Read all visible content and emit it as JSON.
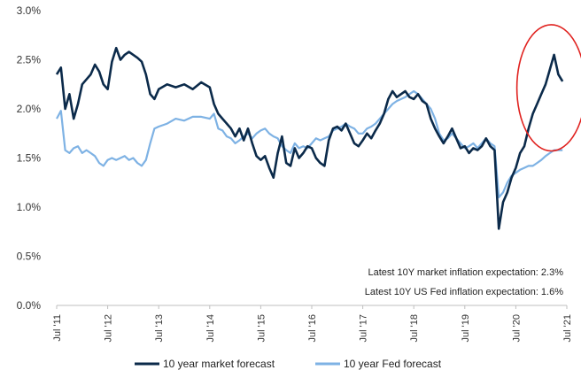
{
  "chart_data": {
    "type": "line",
    "title": "",
    "xlabel": "",
    "ylabel": "",
    "ylim": [
      0.0,
      3.0
    ],
    "xlim": [
      "2011-07",
      "2021-07"
    ],
    "y_ticks": [
      "0.0%",
      "0.5%",
      "1.0%",
      "1.5%",
      "2.0%",
      "2.5%",
      "3.0%"
    ],
    "y_tick_values": [
      0.0,
      0.5,
      1.0,
      1.5,
      2.0,
      2.5,
      3.0
    ],
    "x_ticks": [
      "Jul '11",
      "Jul '12",
      "Jul '13",
      "Jul '14",
      "Jul '15",
      "Jul '16",
      "Jul '17",
      "Jul '18",
      "Jul '19",
      "Jul '20",
      "Jul '21"
    ],
    "x_tick_dates": [
      "2011-07",
      "2012-07",
      "2013-07",
      "2014-07",
      "2015-07",
      "2016-07",
      "2017-07",
      "2018-07",
      "2019-07",
      "2020-07",
      "2021-07"
    ],
    "grid": false,
    "legend_position": "bottom",
    "series": [
      {
        "name": "10 year market forecast",
        "color": "#0b2a4a",
        "x": [
          "2011-07",
          "2011-08",
          "2011-09",
          "2011-10",
          "2011-11",
          "2011-12",
          "2012-01",
          "2012-02",
          "2012-03",
          "2012-04",
          "2012-05",
          "2012-06",
          "2012-07",
          "2012-08",
          "2012-09",
          "2012-10",
          "2012-11",
          "2012-12",
          "2013-01",
          "2013-02",
          "2013-03",
          "2013-04",
          "2013-05",
          "2013-06",
          "2013-07",
          "2013-09",
          "2013-11",
          "2014-01",
          "2014-03",
          "2014-05",
          "2014-07",
          "2014-08",
          "2014-09",
          "2014-10",
          "2014-11",
          "2014-12",
          "2015-01",
          "2015-02",
          "2015-03",
          "2015-04",
          "2015-05",
          "2015-06",
          "2015-07",
          "2015-08",
          "2015-09",
          "2015-10",
          "2015-11",
          "2015-12",
          "2016-01",
          "2016-02",
          "2016-03",
          "2016-04",
          "2016-05",
          "2016-06",
          "2016-07",
          "2016-08",
          "2016-09",
          "2016-10",
          "2016-11",
          "2016-12",
          "2017-01",
          "2017-02",
          "2017-03",
          "2017-04",
          "2017-05",
          "2017-06",
          "2017-07",
          "2017-08",
          "2017-09",
          "2017-10",
          "2017-11",
          "2017-12",
          "2018-01",
          "2018-02",
          "2018-03",
          "2018-04",
          "2018-05",
          "2018-06",
          "2018-07",
          "2018-08",
          "2018-09",
          "2018-10",
          "2018-11",
          "2018-12",
          "2019-01",
          "2019-02",
          "2019-03",
          "2019-04",
          "2019-05",
          "2019-06",
          "2019-07",
          "2019-08",
          "2019-09",
          "2019-10",
          "2019-11",
          "2019-12",
          "2020-01",
          "2020-02",
          "2020-03",
          "2020-04",
          "2020-05",
          "2020-06",
          "2020-07",
          "2020-08",
          "2020-09",
          "2020-10",
          "2020-11",
          "2020-12",
          "2021-01",
          "2021-02",
          "2021-03",
          "2021-04",
          "2021-05",
          "2021-06"
        ],
        "values": [
          2.35,
          2.42,
          2.0,
          2.15,
          1.9,
          2.05,
          2.25,
          2.3,
          2.35,
          2.45,
          2.38,
          2.25,
          2.2,
          2.48,
          2.62,
          2.5,
          2.55,
          2.58,
          2.55,
          2.52,
          2.48,
          2.35,
          2.15,
          2.1,
          2.2,
          2.25,
          2.22,
          2.25,
          2.2,
          2.27,
          2.22,
          2.05,
          1.95,
          1.9,
          1.85,
          1.8,
          1.72,
          1.8,
          1.68,
          1.8,
          1.65,
          1.52,
          1.48,
          1.52,
          1.4,
          1.3,
          1.55,
          1.72,
          1.45,
          1.42,
          1.6,
          1.5,
          1.55,
          1.62,
          1.6,
          1.5,
          1.45,
          1.42,
          1.68,
          1.8,
          1.82,
          1.78,
          1.85,
          1.75,
          1.65,
          1.62,
          1.68,
          1.75,
          1.7,
          1.78,
          1.85,
          1.95,
          2.1,
          2.18,
          2.12,
          2.15,
          2.18,
          2.12,
          2.1,
          2.15,
          2.08,
          2.05,
          1.9,
          1.8,
          1.72,
          1.65,
          1.72,
          1.8,
          1.7,
          1.6,
          1.62,
          1.55,
          1.6,
          1.58,
          1.62,
          1.7,
          1.62,
          1.58,
          0.78,
          1.05,
          1.15,
          1.3,
          1.4,
          1.55,
          1.62,
          1.8,
          1.95,
          2.05,
          2.15,
          2.25,
          2.4,
          2.55,
          2.35,
          2.28
        ]
      },
      {
        "name": "10 year Fed forecast",
        "color": "#7eb2e4",
        "x": [
          "2011-07",
          "2011-08",
          "2011-09",
          "2011-10",
          "2011-11",
          "2011-12",
          "2012-01",
          "2012-02",
          "2012-03",
          "2012-04",
          "2012-05",
          "2012-06",
          "2012-07",
          "2012-08",
          "2012-09",
          "2012-10",
          "2012-11",
          "2012-12",
          "2013-01",
          "2013-02",
          "2013-03",
          "2013-04",
          "2013-05",
          "2013-06",
          "2013-07",
          "2013-09",
          "2013-11",
          "2014-01",
          "2014-03",
          "2014-05",
          "2014-07",
          "2014-08",
          "2014-09",
          "2014-10",
          "2014-11",
          "2014-12",
          "2015-01",
          "2015-02",
          "2015-03",
          "2015-04",
          "2015-05",
          "2015-06",
          "2015-07",
          "2015-08",
          "2015-09",
          "2015-10",
          "2015-11",
          "2015-12",
          "2016-01",
          "2016-02",
          "2016-03",
          "2016-04",
          "2016-05",
          "2016-06",
          "2016-07",
          "2016-08",
          "2016-09",
          "2016-10",
          "2016-11",
          "2016-12",
          "2017-01",
          "2017-02",
          "2017-03",
          "2017-04",
          "2017-05",
          "2017-06",
          "2017-07",
          "2017-08",
          "2017-09",
          "2017-10",
          "2017-11",
          "2017-12",
          "2018-01",
          "2018-02",
          "2018-03",
          "2018-04",
          "2018-05",
          "2018-06",
          "2018-07",
          "2018-08",
          "2018-09",
          "2018-10",
          "2018-11",
          "2018-12",
          "2019-01",
          "2019-02",
          "2019-03",
          "2019-04",
          "2019-05",
          "2019-06",
          "2019-07",
          "2019-08",
          "2019-09",
          "2019-10",
          "2019-11",
          "2019-12",
          "2020-01",
          "2020-02",
          "2020-03",
          "2020-04",
          "2020-05",
          "2020-06",
          "2020-07",
          "2020-08",
          "2020-09",
          "2020-10",
          "2020-11",
          "2020-12",
          "2021-01",
          "2021-02",
          "2021-03",
          "2021-04",
          "2021-05",
          "2021-06"
        ],
        "values": [
          1.9,
          1.98,
          1.58,
          1.55,
          1.6,
          1.62,
          1.55,
          1.58,
          1.55,
          1.52,
          1.45,
          1.42,
          1.48,
          1.5,
          1.48,
          1.5,
          1.52,
          1.48,
          1.5,
          1.45,
          1.42,
          1.48,
          1.65,
          1.8,
          1.82,
          1.85,
          1.9,
          1.88,
          1.92,
          1.92,
          1.9,
          1.95,
          1.8,
          1.78,
          1.72,
          1.7,
          1.65,
          1.68,
          1.72,
          1.75,
          1.7,
          1.75,
          1.78,
          1.8,
          1.75,
          1.72,
          1.7,
          1.62,
          1.58,
          1.55,
          1.65,
          1.6,
          1.62,
          1.6,
          1.65,
          1.7,
          1.68,
          1.7,
          1.72,
          1.78,
          1.8,
          1.82,
          1.85,
          1.82,
          1.8,
          1.75,
          1.75,
          1.8,
          1.82,
          1.85,
          1.9,
          1.95,
          2.0,
          2.05,
          2.08,
          2.1,
          2.12,
          2.15,
          2.18,
          2.15,
          2.1,
          2.05,
          2.0,
          1.9,
          1.75,
          1.68,
          1.7,
          1.75,
          1.7,
          1.65,
          1.6,
          1.62,
          1.65,
          1.6,
          1.65,
          1.7,
          1.65,
          1.62,
          1.1,
          1.15,
          1.25,
          1.32,
          1.35,
          1.38,
          1.4,
          1.42,
          1.42,
          1.45,
          1.48,
          1.52,
          1.55,
          1.58,
          1.58,
          1.58
        ]
      }
    ],
    "annotations": [
      "Latest 10Y market inflation expectation: 2.3%",
      "Latest 10Y US Fed inflation expectation: 1.6%"
    ],
    "highlight": {
      "shape": "ellipse",
      "color": "#e0221f",
      "region": "recent market forecast peak"
    }
  }
}
